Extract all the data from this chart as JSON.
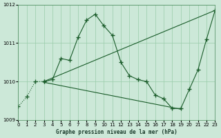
{
  "title": "Graphe pression niveau de la mer (hPa)",
  "xlim": [
    0,
    23
  ],
  "ylim": [
    1009,
    1012
  ],
  "yticks": [
    1009,
    1010,
    1011,
    1012
  ],
  "xticks": [
    0,
    1,
    2,
    3,
    4,
    5,
    6,
    7,
    8,
    9,
    10,
    11,
    12,
    13,
    14,
    15,
    16,
    17,
    18,
    19,
    20,
    21,
    22,
    23
  ],
  "background_color": "#cce8d8",
  "grid_color": "#99ccaa",
  "line_color": "#1a5c2a",
  "series": [
    {
      "x": [
        0,
        1,
        2,
        3
      ],
      "y": [
        1009.35,
        1009.6,
        1010.0,
        1010.0
      ],
      "style": ":",
      "marker": "+",
      "markersize": 4,
      "linewidth": 0.8
    },
    {
      "x": [
        3,
        4,
        5,
        6,
        7,
        8,
        9,
        10,
        11,
        12,
        13,
        14,
        15,
        16,
        17,
        18,
        19,
        20,
        21,
        22,
        23
      ],
      "y": [
        1010.0,
        1010.05,
        1010.6,
        1010.55,
        1011.15,
        1011.6,
        1011.75,
        1011.45,
        1011.2,
        1010.5,
        1010.15,
        1010.05,
        1010.0,
        1009.65,
        1009.55,
        1009.3,
        1009.3,
        1009.8,
        1010.3,
        1011.1,
        1011.85
      ],
      "style": "-",
      "marker": "+",
      "markersize": 4,
      "linewidth": 0.8
    },
    {
      "x": [
        3,
        23
      ],
      "y": [
        1010.0,
        1011.85
      ],
      "style": "-",
      "marker": null,
      "markersize": 0,
      "linewidth": 0.8
    },
    {
      "x": [
        3,
        19
      ],
      "y": [
        1009.98,
        1009.28
      ],
      "style": "-",
      "marker": null,
      "markersize": 0,
      "linewidth": 0.8
    }
  ]
}
